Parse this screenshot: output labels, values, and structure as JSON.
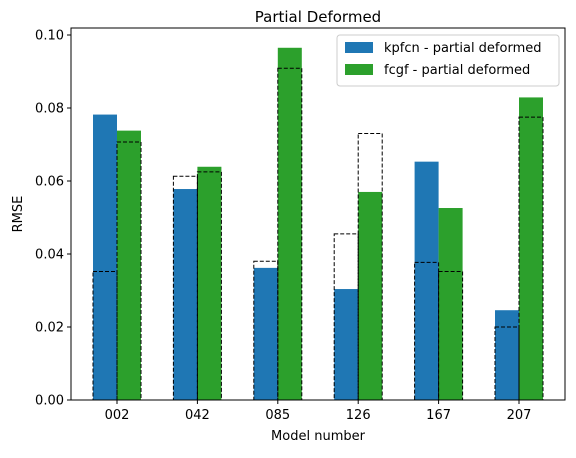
{
  "chart_data": {
    "type": "bar",
    "title": "Partial Deformed",
    "xlabel": "Model number",
    "ylabel": "RMSE",
    "categories": [
      "002",
      "042",
      "085",
      "126",
      "167",
      "207"
    ],
    "ylim": [
      0,
      0.1
    ],
    "yticks": [
      "0.00",
      "0.02",
      "0.04",
      "0.06",
      "0.08",
      "0.10"
    ],
    "grid": false,
    "legend_position": "top-right",
    "series": [
      {
        "name": "kpfcn - partial deformed",
        "color": "#1f77b4",
        "values": [
          0.0782,
          0.0578,
          0.0362,
          0.0304,
          0.0653,
          0.0246
        ],
        "dashed_outline_values": [
          0.0352,
          0.0613,
          0.038,
          0.0455,
          0.0377,
          0.02
        ]
      },
      {
        "name": "fcgf - partial deformed",
        "color": "#2ca02c",
        "values": [
          0.0738,
          0.0639,
          0.0965,
          0.057,
          0.0526,
          0.0829
        ],
        "dashed_outline_values": [
          0.0707,
          0.0625,
          0.0909,
          0.073,
          0.0352,
          0.0775
        ]
      }
    ]
  }
}
